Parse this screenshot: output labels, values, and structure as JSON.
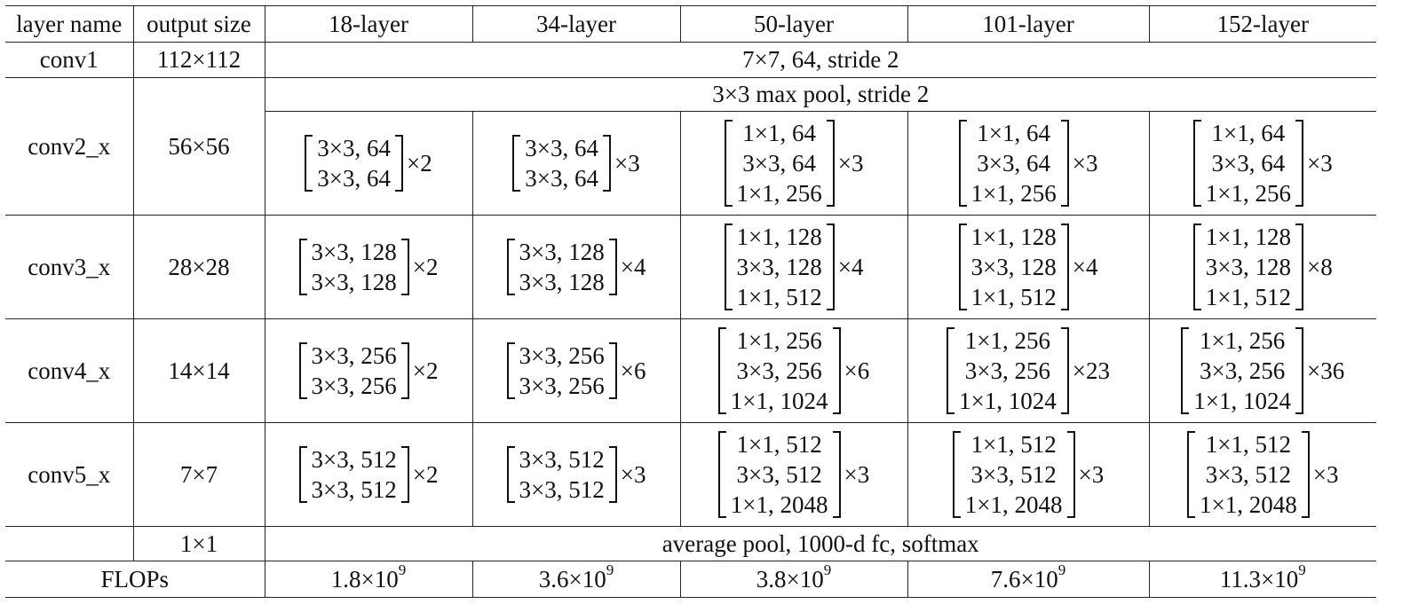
{
  "headers": [
    "layer name",
    "output size",
    "18-layer",
    "34-layer",
    "50-layer",
    "101-layer",
    "152-layer"
  ],
  "conv1": {
    "name": "conv1",
    "size": "112×112",
    "spec": "7×7, 64, stride 2"
  },
  "conv2": {
    "name": "conv2_x",
    "size": "56×56",
    "pool": "3×3 max pool, stride 2",
    "blocks": [
      {
        "lines": [
          "3×3, 64",
          "3×3, 64"
        ],
        "mult": "×2"
      },
      {
        "lines": [
          "3×3, 64",
          "3×3, 64"
        ],
        "mult": "×3"
      },
      {
        "lines": [
          "1×1, 64",
          "3×3, 64",
          "1×1, 256"
        ],
        "mult": "×3"
      },
      {
        "lines": [
          "1×1, 64",
          "3×3, 64",
          "1×1, 256"
        ],
        "mult": "×3"
      },
      {
        "lines": [
          "1×1, 64",
          "3×3, 64",
          "1×1, 256"
        ],
        "mult": "×3"
      }
    ]
  },
  "conv3": {
    "name": "conv3_x",
    "size": "28×28",
    "blocks": [
      {
        "lines": [
          "3×3, 128",
          "3×3, 128"
        ],
        "mult": "×2"
      },
      {
        "lines": [
          "3×3, 128",
          "3×3, 128"
        ],
        "mult": "×4"
      },
      {
        "lines": [
          "1×1, 128",
          "3×3, 128",
          "1×1, 512"
        ],
        "mult": "×4"
      },
      {
        "lines": [
          "1×1, 128",
          "3×3, 128",
          "1×1, 512"
        ],
        "mult": "×4"
      },
      {
        "lines": [
          "1×1, 128",
          "3×3, 128",
          "1×1, 512"
        ],
        "mult": "×8"
      }
    ]
  },
  "conv4": {
    "name": "conv4_x",
    "size": "14×14",
    "blocks": [
      {
        "lines": [
          "3×3, 256",
          "3×3, 256"
        ],
        "mult": "×2"
      },
      {
        "lines": [
          "3×3, 256",
          "3×3, 256"
        ],
        "mult": "×6"
      },
      {
        "lines": [
          "1×1, 256",
          "3×3, 256",
          "1×1, 1024"
        ],
        "mult": "×6"
      },
      {
        "lines": [
          "1×1, 256",
          "3×3, 256",
          "1×1, 1024"
        ],
        "mult": "×23"
      },
      {
        "lines": [
          "1×1, 256",
          "3×3, 256",
          "1×1, 1024"
        ],
        "mult": "×36"
      }
    ]
  },
  "conv5": {
    "name": "conv5_x",
    "size": "7×7",
    "blocks": [
      {
        "lines": [
          "3×3, 512",
          "3×3, 512"
        ],
        "mult": "×2"
      },
      {
        "lines": [
          "3×3, 512",
          "3×3, 512"
        ],
        "mult": "×3"
      },
      {
        "lines": [
          "1×1, 512",
          "3×3, 512",
          "1×1, 2048"
        ],
        "mult": "×3"
      },
      {
        "lines": [
          "1×1, 512",
          "3×3, 512",
          "1×1, 2048"
        ],
        "mult": "×3"
      },
      {
        "lines": [
          "1×1, 512",
          "3×3, 512",
          "1×1, 2048"
        ],
        "mult": "×3"
      }
    ]
  },
  "final": {
    "size": "1×1",
    "spec": "average pool, 1000-d fc, softmax"
  },
  "flops": {
    "label": "FLOPs",
    "values": [
      {
        "base": "1.8×10",
        "exp": "9"
      },
      {
        "base": "3.6×10",
        "exp": "9"
      },
      {
        "base": "3.8×10",
        "exp": "9"
      },
      {
        "base": "7.6×10",
        "exp": "9"
      },
      {
        "base": "11.3×10",
        "exp": "9"
      }
    ]
  }
}
